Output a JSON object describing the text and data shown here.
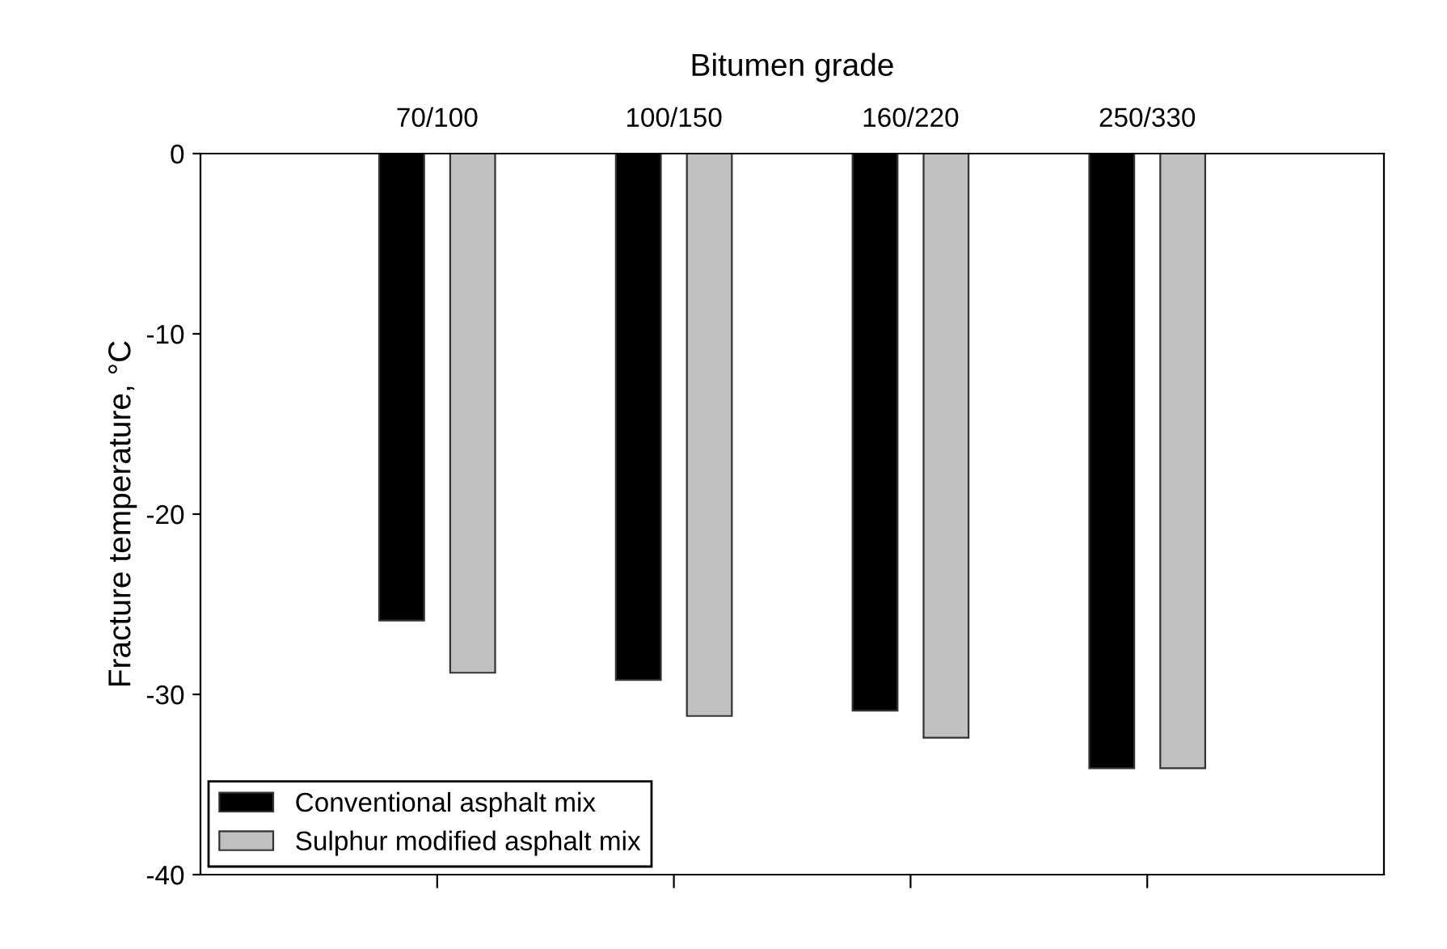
{
  "chart_data": {
    "type": "bar",
    "xlabel": "Bitumen grade",
    "ylabel": "Fracture temperature, °C",
    "categories": [
      "70/100",
      "100/150",
      "160/220",
      "250/330"
    ],
    "series": [
      {
        "name": "Conventional asphalt mix",
        "color": "#000000",
        "values": [
          -25.9,
          -29.2,
          -30.9,
          -34.1
        ]
      },
      {
        "name": "Sulphur modified asphalt mix",
        "color": "#c0c0c0",
        "values": [
          -28.8,
          -31.2,
          -32.4,
          -34.1
        ]
      }
    ],
    "ylim": [
      -40,
      0
    ],
    "yticks": [
      -40,
      -30,
      -20,
      -10,
      0
    ],
    "grid": false,
    "legend": "bottom left"
  }
}
